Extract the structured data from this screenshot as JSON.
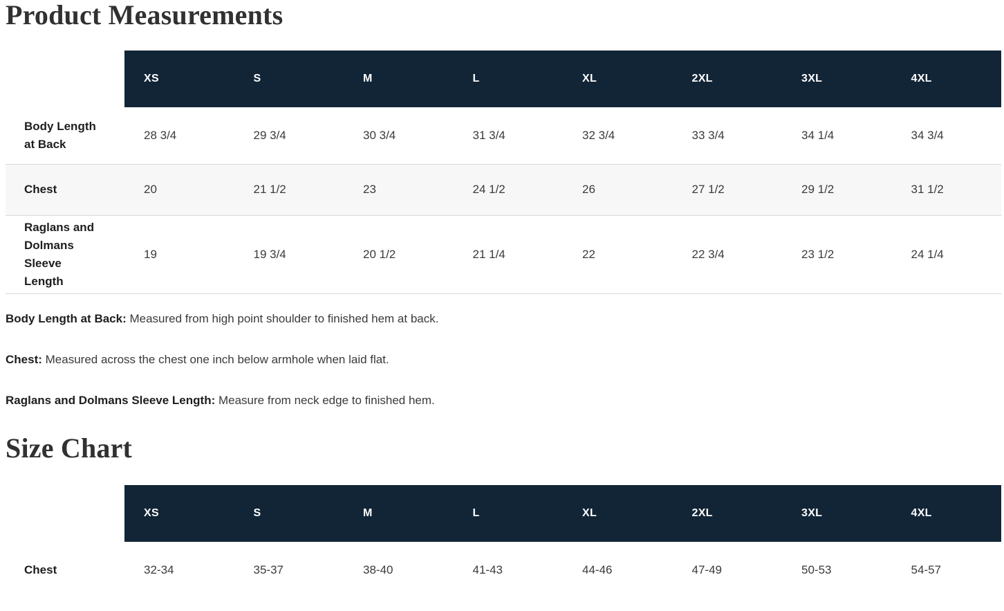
{
  "product_measurements": {
    "title": "Product Measurements",
    "table": {
      "columns": [
        "XS",
        "S",
        "M",
        "L",
        "XL",
        "2XL",
        "3XL",
        "4XL"
      ],
      "rows": [
        {
          "label": "Body Length at Back",
          "values": [
            "28 3/4",
            "29 3/4",
            "30 3/4",
            "31 3/4",
            "32 3/4",
            "33 3/4",
            "34 1/4",
            "34 3/4"
          ]
        },
        {
          "label": "Chest",
          "values": [
            "20",
            "21 1/2",
            "23",
            "24 1/2",
            "26",
            "27 1/2",
            "29 1/2",
            "31 1/2"
          ]
        },
        {
          "label": "Raglans and Dolmans Sleeve Length",
          "values": [
            "19",
            "19 3/4",
            "20 1/2",
            "21 1/4",
            "22",
            "22 3/4",
            "23 1/2",
            "24 1/4"
          ]
        }
      ]
    },
    "notes": [
      {
        "term": "Body Length at Back:",
        "definition": "Measured from high point shoulder to finished hem at back."
      },
      {
        "term": "Chest:",
        "definition": "Measured across the chest one inch below armhole when laid flat."
      },
      {
        "term": "Raglans and Dolmans Sleeve Length:",
        "definition": "Measure from neck edge to finished hem."
      }
    ]
  },
  "size_chart": {
    "title": "Size Chart",
    "table": {
      "columns": [
        "XS",
        "S",
        "M",
        "L",
        "XL",
        "2XL",
        "3XL",
        "4XL"
      ],
      "rows": [
        {
          "label": "Chest",
          "values": [
            "32-34",
            "35-37",
            "38-40",
            "41-43",
            "44-46",
            "47-49",
            "50-53",
            "54-57"
          ]
        }
      ]
    }
  },
  "theme": {
    "header_bg": "#122537",
    "header_text": "#ffffff",
    "row_alt_bg": "#f7f7f7",
    "border": "#d8d8d8",
    "heading_text": "#313131",
    "label_text": "#1e1e1e",
    "body_text": "#3a3a3a"
  }
}
